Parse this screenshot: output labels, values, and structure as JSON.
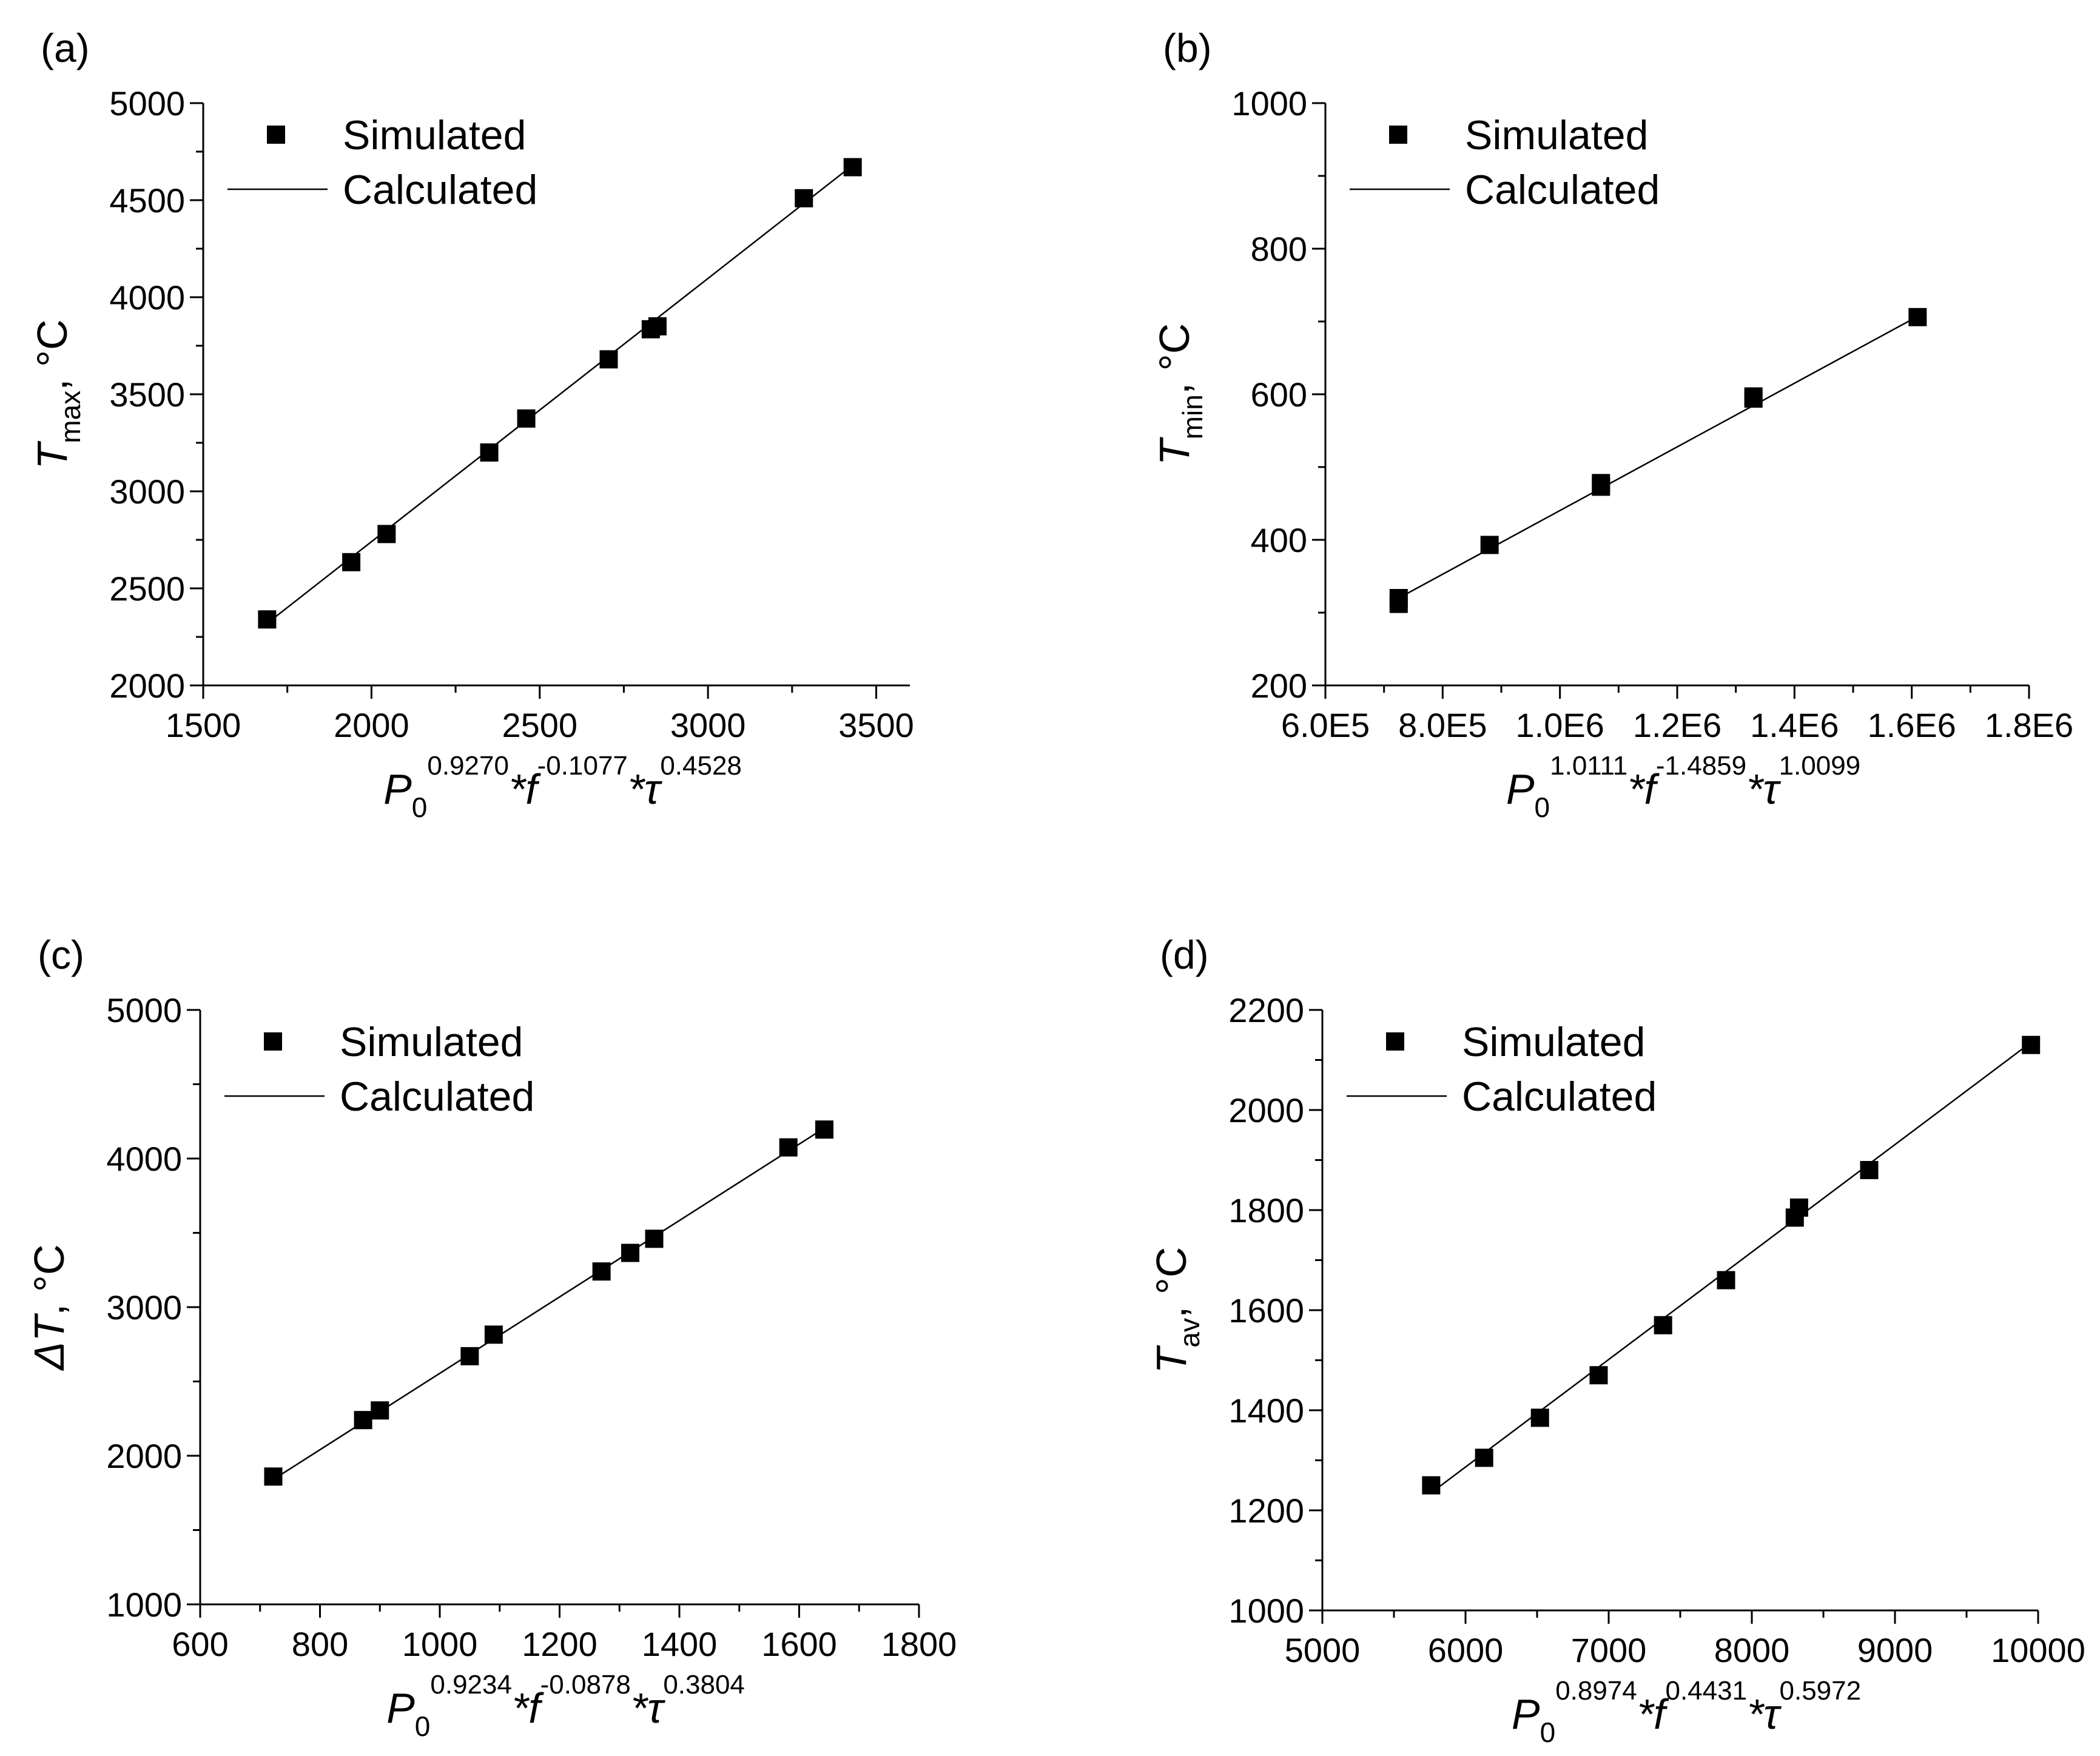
{
  "chart_data": [
    {
      "type": "scatter",
      "panel_label": "(a)",
      "legend": {
        "marker_label": "Simulated",
        "line_label": "Calculated",
        "position": "top-left"
      },
      "ylabel": {
        "symbol": "T",
        "sub": "max",
        "unit": ", °C"
      },
      "xlabel": {
        "base": "P",
        "base_sub": "0",
        "e1": "0.9270",
        "mid1": "*f",
        "e2": "-0.1077",
        "mid2": "*τ",
        "e3": "0.4528"
      },
      "xlim": [
        1500,
        3600
      ],
      "ylim": [
        2000,
        5000
      ],
      "xticks": [
        1500,
        2000,
        2500,
        3000,
        3500
      ],
      "xtick_labels": [
        "1500",
        "2000",
        "2500",
        "3000",
        "3500"
      ],
      "yticks": [
        2000,
        2500,
        3000,
        3500,
        4000,
        4500,
        5000
      ],
      "ytick_labels": [
        "2000",
        "2500",
        "3000",
        "3500",
        "4000",
        "4500",
        "5000"
      ],
      "series": [
        {
          "name": "Simulated",
          "kind": "marker",
          "x": [
            1690,
            1940,
            2045,
            2350,
            2460,
            2705,
            2830,
            2850,
            3285,
            3430
          ],
          "y": [
            2340,
            2635,
            2780,
            3200,
            3375,
            3680,
            3835,
            3850,
            4510,
            4670
          ]
        },
        {
          "name": "Calculated",
          "kind": "line",
          "x": [
            1690,
            3430
          ],
          "y": [
            2320,
            4680
          ]
        }
      ]
    },
    {
      "type": "scatter",
      "panel_label": "(b)",
      "legend": {
        "marker_label": "Simulated",
        "line_label": "Calculated",
        "position": "top-left"
      },
      "ylabel": {
        "symbol": "T",
        "sub": "min",
        "unit": ", °C"
      },
      "xlabel": {
        "base": "P",
        "base_sub": "0",
        "e1": "1.0111",
        "mid1": "*f",
        "e2": "-1.4859",
        "mid2": "*τ",
        "e3": "1.0099"
      },
      "xlim": [
        600000,
        1800000
      ],
      "ylim": [
        200,
        1000
      ],
      "xticks": [
        600000,
        800000,
        1000000,
        1200000,
        1400000,
        1600000,
        1800000
      ],
      "xtick_labels": [
        "6.0E5",
        "8.0E5",
        "1.0E6",
        "1.2E6",
        "1.4E6",
        "1.6E6",
        "1.8E6"
      ],
      "yticks": [
        200,
        400,
        600,
        800,
        1000
      ],
      "ytick_labels": [
        "200",
        "400",
        "600",
        "800",
        "1000"
      ],
      "series": [
        {
          "name": "Simulated",
          "kind": "marker",
          "x": [
            725000,
            725000,
            880000,
            1070000,
            1070000,
            1330000,
            1330000,
            1610000
          ],
          "y": [
            312,
            320,
            393,
            473,
            478,
            594,
            597,
            706
          ]
        },
        {
          "name": "Calculated",
          "kind": "line",
          "x": [
            725000,
            1610000
          ],
          "y": [
            320,
            707
          ]
        }
      ]
    },
    {
      "type": "scatter",
      "panel_label": "(c)",
      "legend": {
        "marker_label": "Simulated",
        "line_label": "Calculated",
        "position": "top-left"
      },
      "ylabel": {
        "symbol": "ΔT",
        "sub": "",
        "unit": ", °C"
      },
      "xlabel": {
        "base": "P",
        "base_sub": "0",
        "e1": "0.9234",
        "mid1": "*f",
        "e2": "-0.0878",
        "mid2": "*τ",
        "e3": "0.3804"
      },
      "xlim": [
        600,
        1800
      ],
      "ylim": [
        1000,
        5000
      ],
      "xticks": [
        600,
        800,
        1000,
        1200,
        1400,
        1600,
        1800
      ],
      "xtick_labels": [
        "600",
        "800",
        "1000",
        "1200",
        "1400",
        "1600",
        "1800"
      ],
      "yticks": [
        1000,
        2000,
        3000,
        4000,
        5000
      ],
      "ytick_labels": [
        "1000",
        "2000",
        "3000",
        "4000",
        "5000"
      ],
      "series": [
        {
          "name": "Simulated",
          "kind": "marker",
          "x": [
            722,
            872,
            900,
            1050,
            1090,
            1270,
            1318,
            1358,
            1582,
            1642
          ],
          "y": [
            1860,
            2240,
            2305,
            2670,
            2815,
            3240,
            3365,
            3460,
            4075,
            4195
          ]
        },
        {
          "name": "Calculated",
          "kind": "line",
          "x": [
            722,
            1642
          ],
          "y": [
            1840,
            4205
          ]
        }
      ]
    },
    {
      "type": "scatter",
      "panel_label": "(d)",
      "legend": {
        "marker_label": "Simulated",
        "line_label": "Calculated",
        "position": "top-left"
      },
      "ylabel": {
        "symbol": "T",
        "sub": "av",
        "unit": ", °C"
      },
      "xlabel": {
        "base": "P",
        "base_sub": "0",
        "e1": "0.8974",
        "mid1": "*f",
        "e2": "0.4431",
        "mid2": "*τ",
        "e3": "0.5972"
      },
      "xlim": [
        5000,
        10000
      ],
      "ylim": [
        1000,
        2200
      ],
      "xticks": [
        5000,
        6000,
        7000,
        8000,
        9000,
        10000
      ],
      "xtick_labels": [
        "5000",
        "6000",
        "7000",
        "8000",
        "9000",
        "10000"
      ],
      "yticks": [
        1000,
        1200,
        1400,
        1600,
        1800,
        2000,
        2200
      ],
      "ytick_labels": [
        "1000",
        "1200",
        "1400",
        "1600",
        "1800",
        "2000",
        "2200"
      ],
      "series": [
        {
          "name": "Simulated",
          "kind": "marker",
          "x": [
            5760,
            6130,
            6520,
            6930,
            7380,
            7820,
            8300,
            8330,
            8820,
            9950
          ],
          "y": [
            1250,
            1305,
            1385,
            1470,
            1570,
            1660,
            1785,
            1805,
            1880,
            2130
          ]
        },
        {
          "name": "Calculated",
          "kind": "line",
          "x": [
            5760,
            9950
          ],
          "y": [
            1235,
            2135
          ]
        }
      ]
    }
  ]
}
